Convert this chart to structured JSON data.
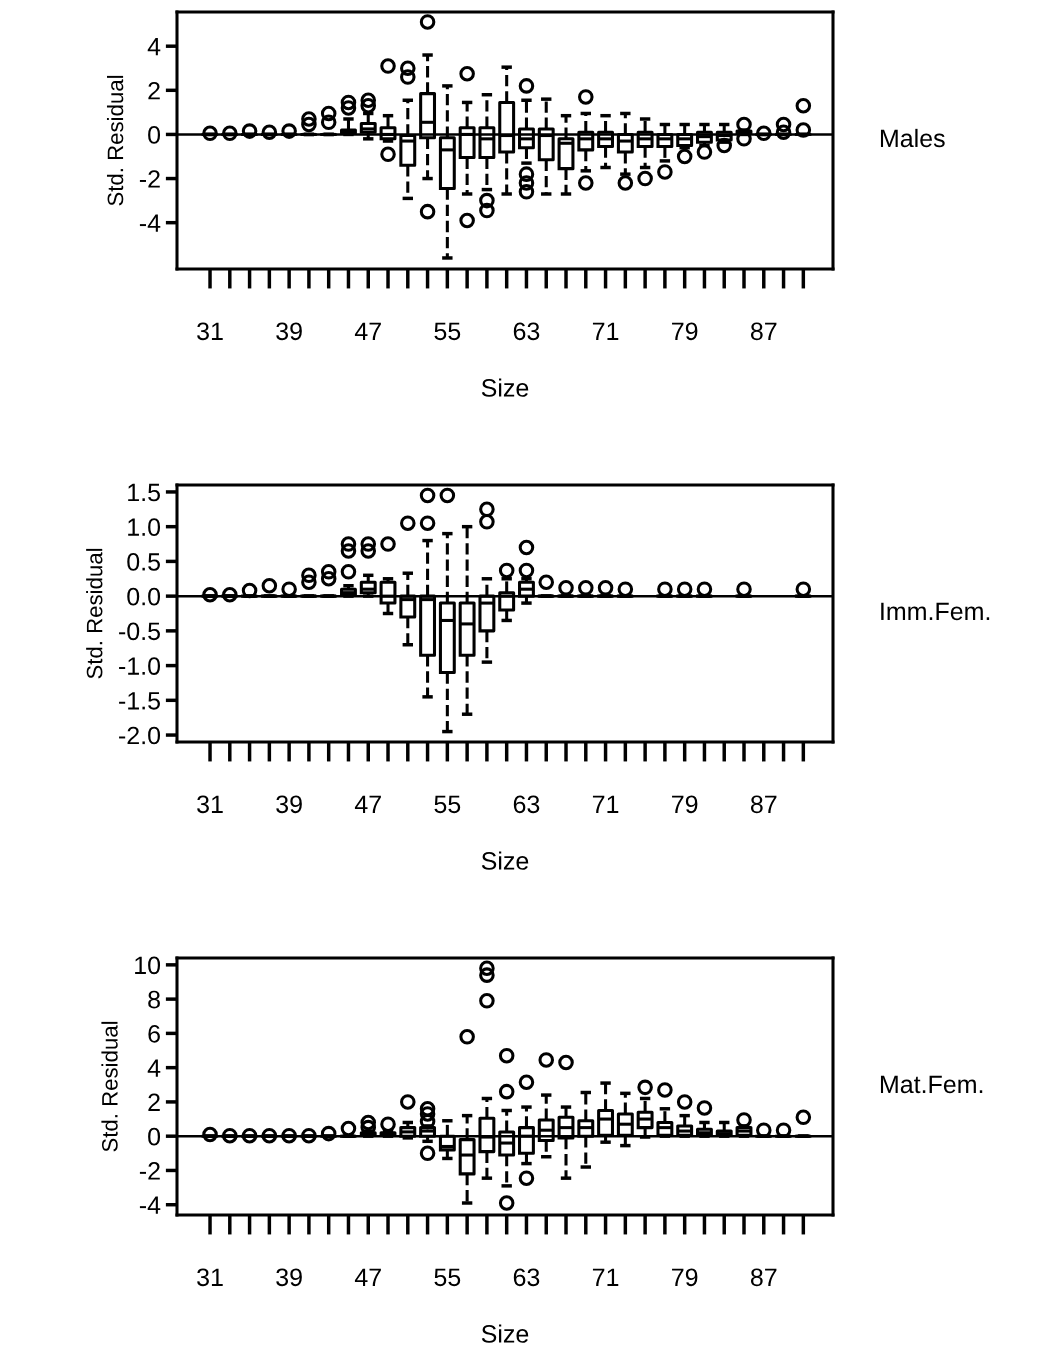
{
  "chart_data": [
    {
      "type": "box",
      "xlabel": "Size",
      "ylabel": "Std. Residual",
      "annotations": [
        "Males"
      ],
      "marker": "circle",
      "line_style": "dashed",
      "grid": false,
      "legend": false,
      "categories": [
        "31",
        null,
        null,
        null,
        "39",
        null,
        null,
        null,
        "47",
        null,
        null,
        null,
        "55",
        null,
        null,
        null,
        "63",
        null,
        null,
        null,
        "71",
        null,
        null,
        null,
        "79",
        null,
        null,
        null,
        "87",
        null,
        null
      ],
      "ylim": [
        -6.1,
        5.55
      ],
      "yticks": [
        -4,
        -2,
        0,
        2,
        4
      ],
      "ref_lines": [
        {
          "axis": "y",
          "value": 0
        }
      ],
      "boxes": [
        {
          "low": 0,
          "q1": 0,
          "median": 0,
          "q3": 0,
          "high": 0,
          "outliers": [
            0.05
          ]
        },
        {
          "low": 0,
          "q1": 0,
          "median": 0,
          "q3": 0,
          "high": 0,
          "outliers": [
            0.05
          ]
        },
        {
          "low": 0,
          "q1": 0,
          "median": 0,
          "q3": 0,
          "high": 0,
          "outliers": [
            0.15
          ]
        },
        {
          "low": 0,
          "q1": 0,
          "median": 0,
          "q3": 0,
          "high": 0,
          "outliers": [
            0.1
          ]
        },
        {
          "low": 0,
          "q1": 0,
          "median": 0,
          "q3": 0,
          "high": 0,
          "outliers": [
            0.15
          ]
        },
        {
          "low": 0,
          "q1": 0,
          "median": 0,
          "q3": 0,
          "high": 0,
          "outliers": [
            0.45,
            0.7
          ]
        },
        {
          "low": 0,
          "q1": 0,
          "median": 0,
          "q3": 0,
          "high": 0,
          "outliers": [
            0.55,
            0.95
          ]
        },
        {
          "low": 0,
          "q1": 0.05,
          "median": 0.1,
          "q3": 0.2,
          "high": 0.7,
          "outliers": [
            1.2,
            1.45
          ]
        },
        {
          "low": -0.2,
          "q1": 0.1,
          "median": 0.25,
          "q3": 0.5,
          "high": 0.95,
          "outliers": [
            1.3,
            1.55
          ]
        },
        {
          "low": -0.3,
          "q1": -0.2,
          "median": 0.0,
          "q3": 0.3,
          "high": 0.85,
          "outliers": [
            -0.9,
            3.1
          ]
        },
        {
          "low": -2.9,
          "q1": -1.4,
          "median": -0.3,
          "q3": -0.05,
          "high": 1.55,
          "outliers": [
            2.6,
            3.0
          ]
        },
        {
          "low": -2.0,
          "q1": -0.15,
          "median": 0.55,
          "q3": 1.85,
          "high": 3.6,
          "outliers": [
            -3.5,
            5.1
          ]
        },
        {
          "low": -5.6,
          "q1": -2.45,
          "median": -0.7,
          "q3": -0.15,
          "high": 2.2
        },
        {
          "low": -2.7,
          "q1": -1.05,
          "median": 0.0,
          "q3": 0.3,
          "high": 1.45,
          "outliers": [
            -3.9,
            2.75
          ]
        },
        {
          "low": -2.5,
          "q1": -1.05,
          "median": -0.2,
          "q3": 0.3,
          "high": 1.8,
          "outliers": [
            -3.45,
            -3.0
          ]
        },
        {
          "low": -2.7,
          "q1": -0.8,
          "median": -0.05,
          "q3": 1.45,
          "high": 3.05
        },
        {
          "low": -1.3,
          "q1": -0.6,
          "median": -0.2,
          "q3": 0.25,
          "high": 1.55,
          "outliers": [
            -2.6,
            -2.2,
            -1.8,
            2.2
          ]
        },
        {
          "low": -2.7,
          "q1": -1.15,
          "median": -0.05,
          "q3": 0.25,
          "high": 1.6
        },
        {
          "low": -2.7,
          "q1": -1.55,
          "median": -0.4,
          "q3": -0.2,
          "high": 0.85
        },
        {
          "low": -1.65,
          "q1": -0.7,
          "median": -0.2,
          "q3": 0.1,
          "high": 0.95,
          "outliers": [
            -2.2,
            1.7
          ]
        },
        {
          "low": -1.5,
          "q1": -0.55,
          "median": -0.2,
          "q3": 0.1,
          "high": 0.85
        },
        {
          "low": -1.8,
          "q1": -0.8,
          "median": -0.3,
          "q3": 0.0,
          "high": 0.95,
          "outliers": [
            -2.2
          ]
        },
        {
          "low": -1.5,
          "q1": -0.55,
          "median": -0.2,
          "q3": 0.1,
          "high": 0.7,
          "outliers": [
            -2.0
          ]
        },
        {
          "low": -1.2,
          "q1": -0.55,
          "median": -0.2,
          "q3": 0.0,
          "high": 0.45,
          "outliers": [
            -1.7
          ]
        },
        {
          "low": -0.6,
          "q1": -0.5,
          "median": -0.2,
          "q3": 0.0,
          "high": 0.45,
          "outliers": [
            -1.0
          ]
        },
        {
          "low": -0.5,
          "q1": -0.35,
          "median": -0.1,
          "q3": 0.1,
          "high": 0.45,
          "outliers": [
            -0.8
          ]
        },
        {
          "low": -0.35,
          "q1": -0.25,
          "median": -0.05,
          "q3": 0.1,
          "high": 0.45,
          "outliers": [
            -0.5
          ]
        },
        {
          "low": 0,
          "q1": 0.05,
          "median": 0.1,
          "q3": 0.15,
          "high": 0.2,
          "outliers": [
            -0.2,
            0.45
          ]
        },
        {
          "low": 0,
          "q1": 0,
          "median": 0,
          "q3": 0,
          "high": 0,
          "outliers": [
            0.05
          ]
        },
        {
          "low": 0,
          "q1": 0,
          "median": 0,
          "q3": 0,
          "high": 0,
          "outliers": [
            0.1,
            0.45
          ]
        },
        {
          "low": 0,
          "q1": 0,
          "median": 0,
          "q3": 0,
          "high": 0,
          "outliers": [
            0.2,
            1.3
          ]
        }
      ]
    },
    {
      "type": "box",
      "xlabel": "Size",
      "ylabel": "Std. Residual",
      "annotations": [
        "Imm.Fem."
      ],
      "marker": "circle",
      "line_style": "dashed",
      "grid": false,
      "legend": false,
      "categories": [
        "31",
        null,
        null,
        null,
        "39",
        null,
        null,
        null,
        "47",
        null,
        null,
        null,
        "55",
        null,
        null,
        null,
        "63",
        null,
        null,
        null,
        "71",
        null,
        null,
        null,
        "79",
        null,
        null,
        null,
        "87",
        null,
        null
      ],
      "ylim": [
        -2.1,
        1.6
      ],
      "yticks": [
        {
          "value": -2,
          "label": "-2.0"
        },
        {
          "value": -1.5,
          "label": "-1.5"
        },
        {
          "value": -1,
          "label": "-1.0"
        },
        {
          "value": -0.5,
          "label": "-0.5"
        },
        {
          "value": 0,
          "label": "0.0"
        },
        {
          "value": 0.5,
          "label": "0.5"
        },
        {
          "value": 1,
          "label": "1.0"
        },
        {
          "value": 1.5,
          "label": "1.5"
        }
      ],
      "ref_lines": [
        {
          "axis": "y",
          "value": 0
        }
      ],
      "boxes": [
        {
          "low": 0,
          "q1": 0,
          "median": 0,
          "q3": 0,
          "high": 0,
          "outliers": [
            0.02
          ]
        },
        {
          "low": 0,
          "q1": 0,
          "median": 0,
          "q3": 0,
          "high": 0,
          "outliers": [
            0.02
          ]
        },
        {
          "low": 0,
          "q1": 0,
          "median": 0,
          "q3": 0,
          "high": 0,
          "outliers": [
            0.08
          ]
        },
        {
          "low": 0,
          "q1": 0,
          "median": 0,
          "q3": 0,
          "high": 0,
          "outliers": [
            0.15
          ]
        },
        {
          "low": 0,
          "q1": 0,
          "median": 0,
          "q3": 0,
          "high": 0,
          "outliers": [
            0.1
          ]
        },
        {
          "low": 0,
          "q1": 0,
          "median": 0,
          "q3": 0,
          "high": 0,
          "outliers": [
            0.2,
            0.3
          ]
        },
        {
          "low": 0,
          "q1": 0,
          "median": 0,
          "q3": 0,
          "high": 0,
          "outliers": [
            0.25,
            0.35
          ]
        },
        {
          "low": 0,
          "q1": 0.02,
          "median": 0.05,
          "q3": 0.1,
          "high": 0.15,
          "outliers": [
            0.35,
            0.65,
            0.75
          ]
        },
        {
          "low": 0,
          "q1": 0.05,
          "median": 0.1,
          "q3": 0.2,
          "high": 0.3,
          "outliers": [
            0.65,
            0.75
          ]
        },
        {
          "low": -0.25,
          "q1": -0.1,
          "median": 0.0,
          "q3": 0.2,
          "high": 0.25,
          "outliers": [
            0.75
          ]
        },
        {
          "low": -0.7,
          "q1": -0.3,
          "median": -0.05,
          "q3": 0.0,
          "high": 0.33,
          "outliers": [
            1.05
          ]
        },
        {
          "low": -1.45,
          "q1": -0.85,
          "median": -0.05,
          "q3": 0.0,
          "high": 0.8,
          "outliers": [
            1.05,
            1.45
          ]
        },
        {
          "low": -1.95,
          "q1": -1.1,
          "median": -0.35,
          "q3": -0.1,
          "high": 0.9,
          "outliers": [
            1.45
          ]
        },
        {
          "low": -1.7,
          "q1": -0.85,
          "median": -0.4,
          "q3": -0.1,
          "high": 1.0
        },
        {
          "low": -0.95,
          "q1": -0.5,
          "median": -0.1,
          "q3": 0.0,
          "high": 0.25,
          "outliers": [
            1.07,
            1.25
          ]
        },
        {
          "low": -0.35,
          "q1": -0.2,
          "median": 0.0,
          "q3": 0.05,
          "high": 0.25,
          "outliers": [
            0.37
          ]
        },
        {
          "low": -0.1,
          "q1": 0.0,
          "median": 0.1,
          "q3": 0.2,
          "high": 0.25,
          "outliers": [
            0.37,
            0.7
          ]
        },
        {
          "low": 0,
          "q1": 0,
          "median": 0,
          "q3": 0,
          "high": 0,
          "outliers": [
            0.2
          ]
        },
        {
          "low": 0,
          "q1": 0,
          "median": 0,
          "q3": 0,
          "high": 0,
          "outliers": [
            0.12
          ]
        },
        {
          "low": 0,
          "q1": 0,
          "median": 0,
          "q3": 0,
          "high": 0,
          "outliers": [
            0.12
          ]
        },
        {
          "low": 0,
          "q1": 0,
          "median": 0,
          "q3": 0,
          "high": 0,
          "outliers": [
            0.12
          ]
        },
        {
          "low": 0,
          "q1": 0,
          "median": 0,
          "q3": 0,
          "high": 0,
          "outliers": [
            0.1
          ]
        },
        null,
        {
          "low": 0,
          "q1": 0,
          "median": 0,
          "q3": 0,
          "high": 0,
          "outliers": [
            0.1
          ]
        },
        {
          "low": 0,
          "q1": 0,
          "median": 0,
          "q3": 0,
          "high": 0,
          "outliers": [
            0.1
          ]
        },
        {
          "low": 0,
          "q1": 0,
          "median": 0,
          "q3": 0,
          "high": 0,
          "outliers": [
            0.1
          ]
        },
        null,
        {
          "low": 0,
          "q1": 0,
          "median": 0,
          "q3": 0,
          "high": 0,
          "outliers": [
            0.1
          ]
        },
        null,
        null,
        {
          "low": 0,
          "q1": 0,
          "median": 0,
          "q3": 0,
          "high": 0,
          "outliers": [
            0.1
          ]
        }
      ]
    },
    {
      "type": "box",
      "xlabel": "Size",
      "ylabel": "Std. Residual",
      "annotations": [
        "Mat.Fem."
      ],
      "marker": "circle",
      "line_style": "dashed",
      "grid": false,
      "legend": false,
      "categories": [
        "31",
        null,
        null,
        null,
        "39",
        null,
        null,
        null,
        "47",
        null,
        null,
        null,
        "55",
        null,
        null,
        null,
        "63",
        null,
        null,
        null,
        "71",
        null,
        null,
        null,
        "79",
        null,
        null,
        null,
        "87",
        null,
        null
      ],
      "ylim": [
        -4.6,
        10.4
      ],
      "yticks": [
        -4,
        -2,
        0,
        2,
        4,
        6,
        8,
        10
      ],
      "ref_lines": [
        {
          "axis": "y",
          "value": 0
        }
      ],
      "boxes": [
        {
          "low": 0,
          "q1": 0,
          "median": 0,
          "q3": 0,
          "high": 0,
          "outliers": [
            0.1
          ]
        },
        {
          "low": 0,
          "q1": 0,
          "median": 0,
          "q3": 0,
          "high": 0,
          "outliers": [
            0.03
          ]
        },
        {
          "low": 0,
          "q1": 0,
          "median": 0,
          "q3": 0,
          "high": 0,
          "outliers": [
            0.03
          ]
        },
        {
          "low": 0,
          "q1": 0,
          "median": 0,
          "q3": 0,
          "high": 0,
          "outliers": [
            0.03
          ]
        },
        {
          "low": 0,
          "q1": 0,
          "median": 0,
          "q3": 0,
          "high": 0,
          "outliers": [
            0.03
          ]
        },
        {
          "low": 0,
          "q1": 0,
          "median": 0,
          "q3": 0,
          "high": 0,
          "outliers": [
            0.03
          ]
        },
        {
          "low": 0,
          "q1": 0,
          "median": 0,
          "q3": 0,
          "high": 0,
          "outliers": [
            0.15
          ]
        },
        {
          "low": 0,
          "q1": 0,
          "median": 0,
          "q3": 0,
          "high": 0,
          "outliers": [
            0.45
          ]
        },
        {
          "low": 0,
          "q1": 0.05,
          "median": 0.1,
          "q3": 0.2,
          "high": 0.3,
          "outliers": [
            0.5,
            0.8
          ]
        },
        {
          "low": 0,
          "q1": 0.05,
          "median": 0.1,
          "q3": 0.2,
          "high": 0.3,
          "outliers": [
            0.7
          ]
        },
        {
          "low": -0.1,
          "q1": 0.0,
          "median": 0.25,
          "q3": 0.5,
          "high": 0.8,
          "outliers": [
            2.0
          ]
        },
        {
          "low": -0.3,
          "q1": 0.0,
          "median": 0.3,
          "q3": 0.5,
          "high": 0.6,
          "outliers": [
            -1.0,
            0.85,
            1.3,
            1.6
          ]
        },
        {
          "low": -1.3,
          "q1": -0.8,
          "median": -0.6,
          "q3": 0.0,
          "high": 0.9
        },
        {
          "low": -3.9,
          "q1": -2.2,
          "median": -1.1,
          "q3": -0.2,
          "high": 1.2,
          "outliers": [
            5.8
          ]
        },
        {
          "low": -2.45,
          "q1": -0.9,
          "median": -0.05,
          "q3": 1.05,
          "high": 2.2,
          "outliers": [
            7.9,
            9.4,
            9.8
          ]
        },
        {
          "low": -2.9,
          "q1": -1.1,
          "median": -0.4,
          "q3": 0.25,
          "high": 1.5,
          "outliers": [
            -3.9,
            2.6,
            4.7
          ]
        },
        {
          "low": -1.6,
          "q1": -1.0,
          "median": 0.0,
          "q3": 0.5,
          "high": 1.7,
          "outliers": [
            -2.45,
            3.15
          ]
        },
        {
          "low": -1.2,
          "q1": -0.25,
          "median": 0.35,
          "q3": 0.95,
          "high": 2.4,
          "outliers": [
            4.45
          ]
        },
        {
          "low": -2.45,
          "q1": -0.1,
          "median": 0.5,
          "q3": 1.1,
          "high": 1.7,
          "outliers": [
            4.3
          ]
        },
        {
          "low": -1.8,
          "q1": 0.0,
          "median": 0.5,
          "q3": 0.9,
          "high": 2.55
        },
        {
          "low": -0.35,
          "q1": 0.05,
          "median": 1.0,
          "q3": 1.5,
          "high": 3.1
        },
        {
          "low": -0.55,
          "q1": 0.05,
          "median": 0.7,
          "q3": 1.3,
          "high": 2.5
        },
        {
          "low": -0.05,
          "q1": 0.5,
          "median": 1.0,
          "q3": 1.4,
          "high": 2.2,
          "outliers": [
            2.85
          ]
        },
        {
          "low": 0.0,
          "q1": 0.05,
          "median": 0.5,
          "q3": 0.8,
          "high": 1.6,
          "outliers": [
            2.7
          ]
        },
        {
          "low": 0.0,
          "q1": 0.05,
          "median": 0.3,
          "q3": 0.6,
          "high": 1.2,
          "outliers": [
            2.0
          ]
        },
        {
          "low": 0,
          "q1": 0.05,
          "median": 0.2,
          "q3": 0.4,
          "high": 0.8,
          "outliers": [
            1.65
          ]
        },
        {
          "low": 0,
          "q1": 0.05,
          "median": 0.15,
          "q3": 0.3,
          "high": 0.8
        },
        {
          "low": 0,
          "q1": 0.05,
          "median": 0.3,
          "q3": 0.5,
          "high": 0.6,
          "outliers": [
            0.95
          ]
        },
        {
          "low": 0,
          "q1": 0,
          "median": 0,
          "q3": 0,
          "high": 0,
          "outliers": [
            0.35
          ]
        },
        {
          "low": 0,
          "q1": 0,
          "median": 0,
          "q3": 0,
          "high": 0,
          "outliers": [
            0.35
          ]
        },
        {
          "low": 0,
          "q1": 0,
          "median": 0,
          "q3": 0,
          "high": 0,
          "outliers": [
            1.1
          ]
        }
      ]
    }
  ]
}
